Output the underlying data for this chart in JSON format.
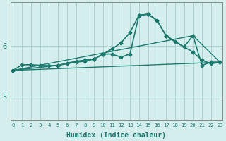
{
  "xlabel": "Humidex (Indice chaleur)",
  "bg_color": "#d4eeed",
  "grid_color": "#aed4d0",
  "line_color": "#1a7a6e",
  "x_ticks": [
    0,
    1,
    2,
    3,
    4,
    5,
    6,
    7,
    8,
    9,
    10,
    11,
    12,
    13,
    14,
    15,
    16,
    17,
    18,
    19,
    20,
    21,
    22,
    23
  ],
  "y_ticks": [
    5,
    6
  ],
  "ylim": [
    4.55,
    6.85
  ],
  "xlim": [
    -0.3,
    23.3
  ],
  "series": [
    {
      "x": [
        0,
        1,
        2,
        3,
        4,
        5,
        6,
        7,
        8,
        9,
        10,
        11,
        12,
        13,
        14,
        15,
        16,
        17,
        18,
        19,
        20,
        21,
        22,
        23
      ],
      "y": [
        5.52,
        5.63,
        5.63,
        5.62,
        5.61,
        5.62,
        5.66,
        5.7,
        5.72,
        5.74,
        5.84,
        5.94,
        6.06,
        6.26,
        6.6,
        6.62,
        6.5,
        6.2,
        6.08,
        5.98,
        5.88,
        5.72,
        5.65,
        5.68
      ],
      "marker": "D",
      "markersize": 2.5,
      "linewidth": 1.2
    },
    {
      "x": [
        0,
        5,
        7,
        8,
        9,
        10,
        11,
        12,
        13,
        14,
        15,
        16,
        17,
        19,
        20,
        21,
        22,
        23
      ],
      "y": [
        5.52,
        5.62,
        5.68,
        5.7,
        5.74,
        5.84,
        5.84,
        5.78,
        5.84,
        6.6,
        6.62,
        6.5,
        6.2,
        5.98,
        6.2,
        5.62,
        5.68,
        5.68
      ],
      "marker": "D",
      "markersize": 2.5,
      "linewidth": 1.2
    },
    {
      "x": [
        0,
        23
      ],
      "y": [
        5.52,
        5.68
      ],
      "marker": null,
      "linewidth": 1.0
    },
    {
      "x": [
        0,
        20,
        23
      ],
      "y": [
        5.52,
        6.2,
        5.68
      ],
      "marker": null,
      "linewidth": 1.0
    }
  ]
}
